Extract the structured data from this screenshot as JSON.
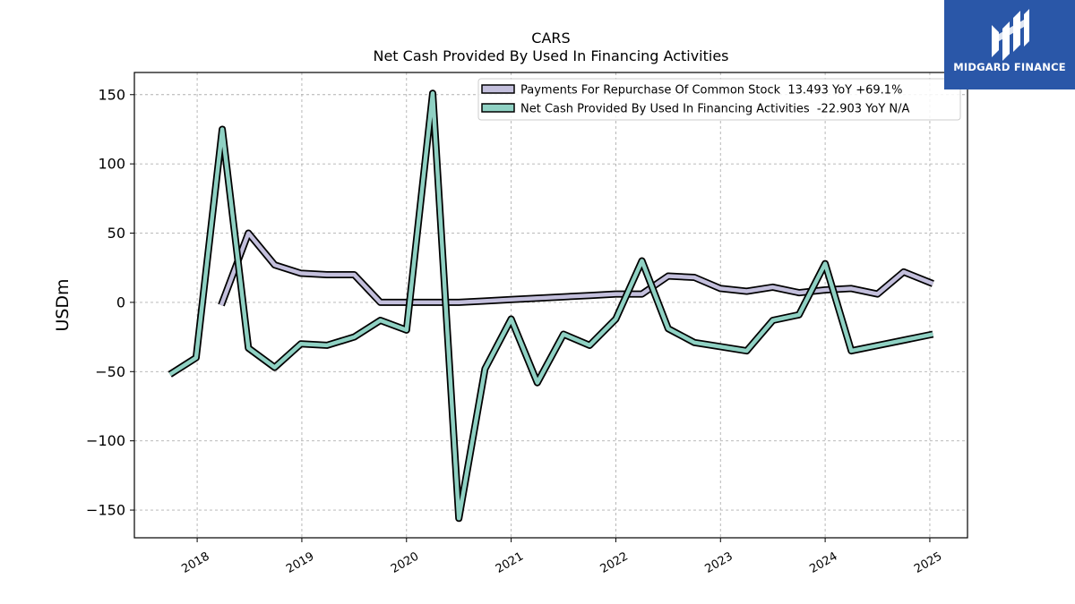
{
  "chart_data": {
    "type": "line",
    "title": "CARS",
    "subtitle": "Net Cash Provided By Used In Financing Activities",
    "ylabel": "USDm",
    "xlabel": "",
    "ylim": [
      -170,
      166
    ],
    "xlim": [
      2017.4,
      2025.36
    ],
    "yticks": [
      -150,
      -100,
      -50,
      0,
      50,
      100,
      150
    ],
    "xticks": [
      2018,
      2019,
      2020,
      2021,
      2022,
      2023,
      2024,
      2025
    ],
    "ytick_labels": [
      "−150",
      "−100",
      "−50",
      "0",
      "50",
      "100",
      "150"
    ],
    "xtick_labels": [
      "2018",
      "2019",
      "2020",
      "2021",
      "2022",
      "2023",
      "2024",
      "2025"
    ],
    "grid": true,
    "legend_position": "top-right",
    "series": [
      {
        "name": "Payments For Repurchase Of Common Stock  13.493 YoY +69.1%",
        "color": "#c3bfdc",
        "x": [
          2018.23,
          2018.49,
          2018.74,
          2018.99,
          2019.24,
          2019.5,
          2019.75,
          2020.0,
          2020.25,
          2020.5,
          2020.75,
          2021.0,
          2021.25,
          2021.5,
          2021.75,
          2022.0,
          2022.25,
          2022.5,
          2022.75,
          2023.0,
          2023.25,
          2023.5,
          2023.75,
          2024.0,
          2024.25,
          2024.5,
          2024.75,
          2025.03
        ],
        "y": [
          -2,
          50,
          27,
          21,
          20,
          20,
          0,
          0,
          0,
          0,
          1,
          2,
          3,
          4,
          5,
          6,
          6,
          19,
          18,
          10,
          8,
          11,
          7,
          9,
          10,
          6,
          22,
          13.5
        ]
      },
      {
        "name": "Net Cash Provided By Used In Financing Activities  -22.903 YoY N/A",
        "color": "#8fd1c3",
        "x": [
          2017.74,
          2017.99,
          2018.24,
          2018.49,
          2018.74,
          2018.99,
          2019.24,
          2019.5,
          2019.75,
          2020.0,
          2020.25,
          2020.5,
          2020.75,
          2021.0,
          2021.25,
          2021.5,
          2021.75,
          2022.0,
          2022.25,
          2022.5,
          2022.75,
          2023.0,
          2023.25,
          2023.5,
          2023.75,
          2024.0,
          2024.25,
          2025.03
        ],
        "y": [
          -52,
          -40,
          125,
          -33,
          -47,
          -30,
          -31,
          -25,
          -13,
          -20,
          151,
          -156,
          -48,
          -12,
          -58,
          -23,
          -31,
          -12,
          30,
          -19,
          -29,
          -32,
          -35,
          -13,
          -9,
          28,
          -35,
          -23
        ]
      }
    ]
  },
  "logo": {
    "text": "MIDGARD FINANCE",
    "icon": "midgard-logo-icon"
  }
}
